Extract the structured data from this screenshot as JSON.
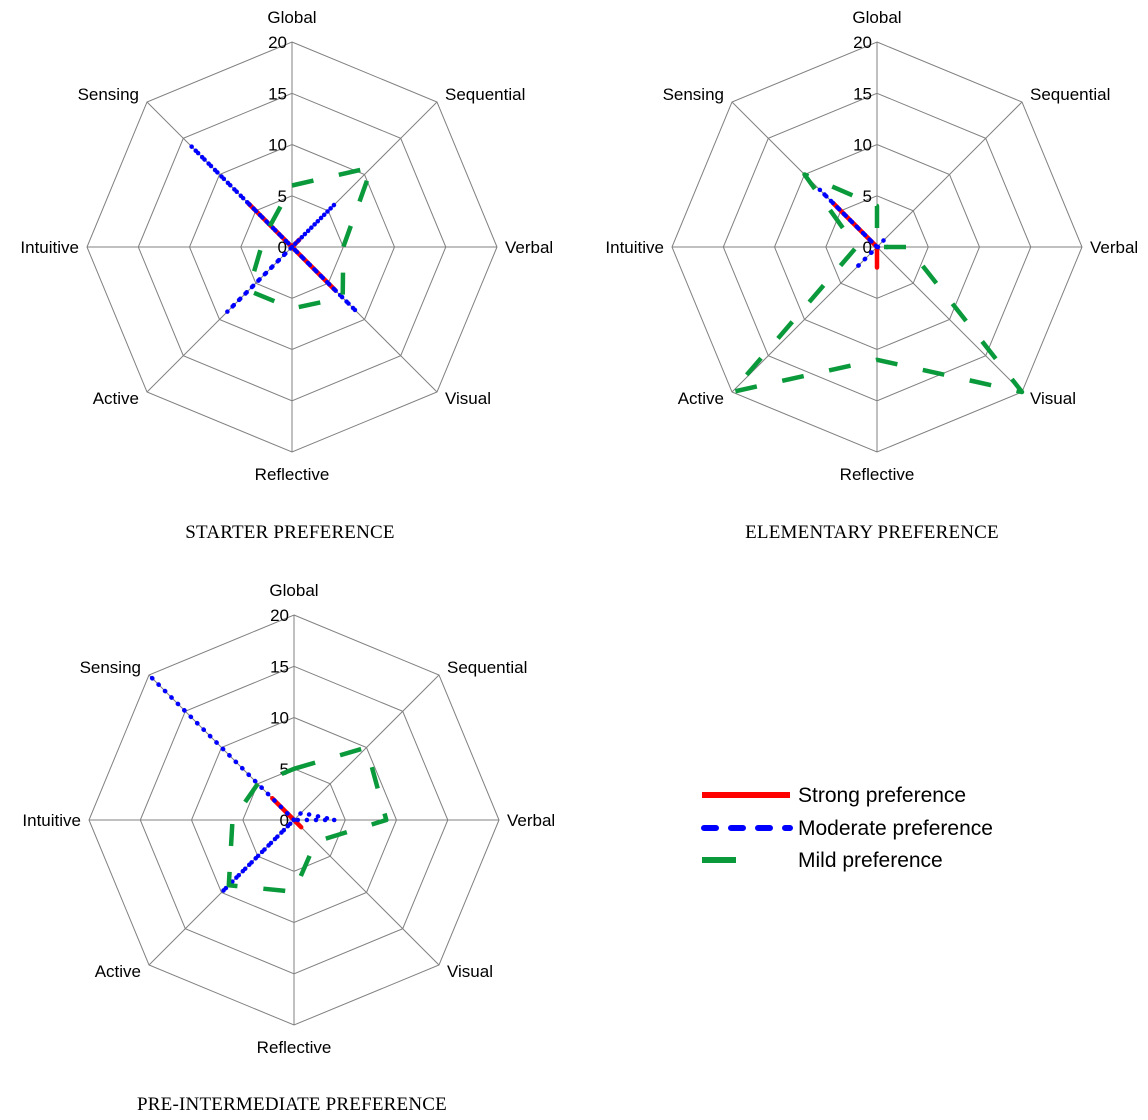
{
  "chart_data": [
    {
      "type": "radar",
      "title": "STARTER PREFERENCE",
      "axes": [
        "Global",
        "Sequential",
        "Verbal",
        "Visual",
        "Reflective",
        "Active",
        "Intuitive",
        "Sensing"
      ],
      "ticks": [
        "0",
        "5",
        "10",
        "15",
        "20"
      ],
      "rlim": [
        0,
        20
      ],
      "grid": true,
      "series": [
        {
          "name": "Strong preference",
          "values": [
            0,
            1,
            0,
            6,
            0,
            0,
            0,
            6
          ]
        },
        {
          "name": "Moderate preference",
          "values": [
            0,
            6,
            0,
            9,
            0,
            9,
            0,
            14
          ]
        },
        {
          "name": "Mild preference",
          "values": [
            6,
            11,
            5,
            7,
            6,
            6,
            3,
            3
          ]
        }
      ]
    },
    {
      "type": "radar",
      "title": "ELEMENTARY PREFERENCE",
      "axes": [
        "Global",
        "Sequential",
        "Verbal",
        "Visual",
        "Reflective",
        "Active",
        "Intuitive",
        "Sensing"
      ],
      "ticks": [
        "0",
        "5",
        "10",
        "15",
        "20"
      ],
      "rlim": [
        0,
        20
      ],
      "grid": true,
      "series": [
        {
          "name": "Strong preference",
          "values": [
            0,
            0,
            0,
            0,
            2,
            0,
            0,
            6
          ]
        },
        {
          "name": "Moderate preference",
          "values": [
            0,
            1,
            1,
            0,
            0,
            3,
            0,
            8
          ]
        },
        {
          "name": "Mild preference",
          "values": [
            4,
            0,
            3,
            20,
            11,
            20,
            2,
            10
          ]
        }
      ]
    },
    {
      "type": "radar",
      "title": "PRE-INTERMEDIATE PREFERENCE",
      "axes": [
        "Global",
        "Sequential",
        "Verbal",
        "Visual",
        "Reflective",
        "Active",
        "Intuitive",
        "Sensing"
      ],
      "ticks": [
        "0",
        "5",
        "10",
        "15",
        "20"
      ],
      "rlim": [
        0,
        20
      ],
      "grid": true,
      "series": [
        {
          "name": "Strong preference",
          "values": [
            0,
            0,
            0,
            1,
            0,
            0,
            0,
            3
          ]
        },
        {
          "name": "Moderate preference",
          "values": [
            0,
            1,
            4,
            0,
            0,
            10,
            0,
            20
          ]
        },
        {
          "name": "Mild preference",
          "values": [
            5,
            10,
            9,
            3,
            7,
            9,
            6,
            5
          ]
        }
      ]
    }
  ],
  "legend": {
    "placement": "right",
    "items": [
      {
        "label": "Strong preference",
        "color": "#ff0000",
        "style": "solid"
      },
      {
        "label": "Moderate preference",
        "color": "#0000ff",
        "style": "dotted"
      },
      {
        "label": "Mild preference",
        "color": "#0a9a3b",
        "style": "dashed"
      }
    ]
  },
  "colors": {
    "strong": "#ff0000",
    "moderate": "#0000ff",
    "mild": "#0a9a3b",
    "grid": "#808080"
  }
}
